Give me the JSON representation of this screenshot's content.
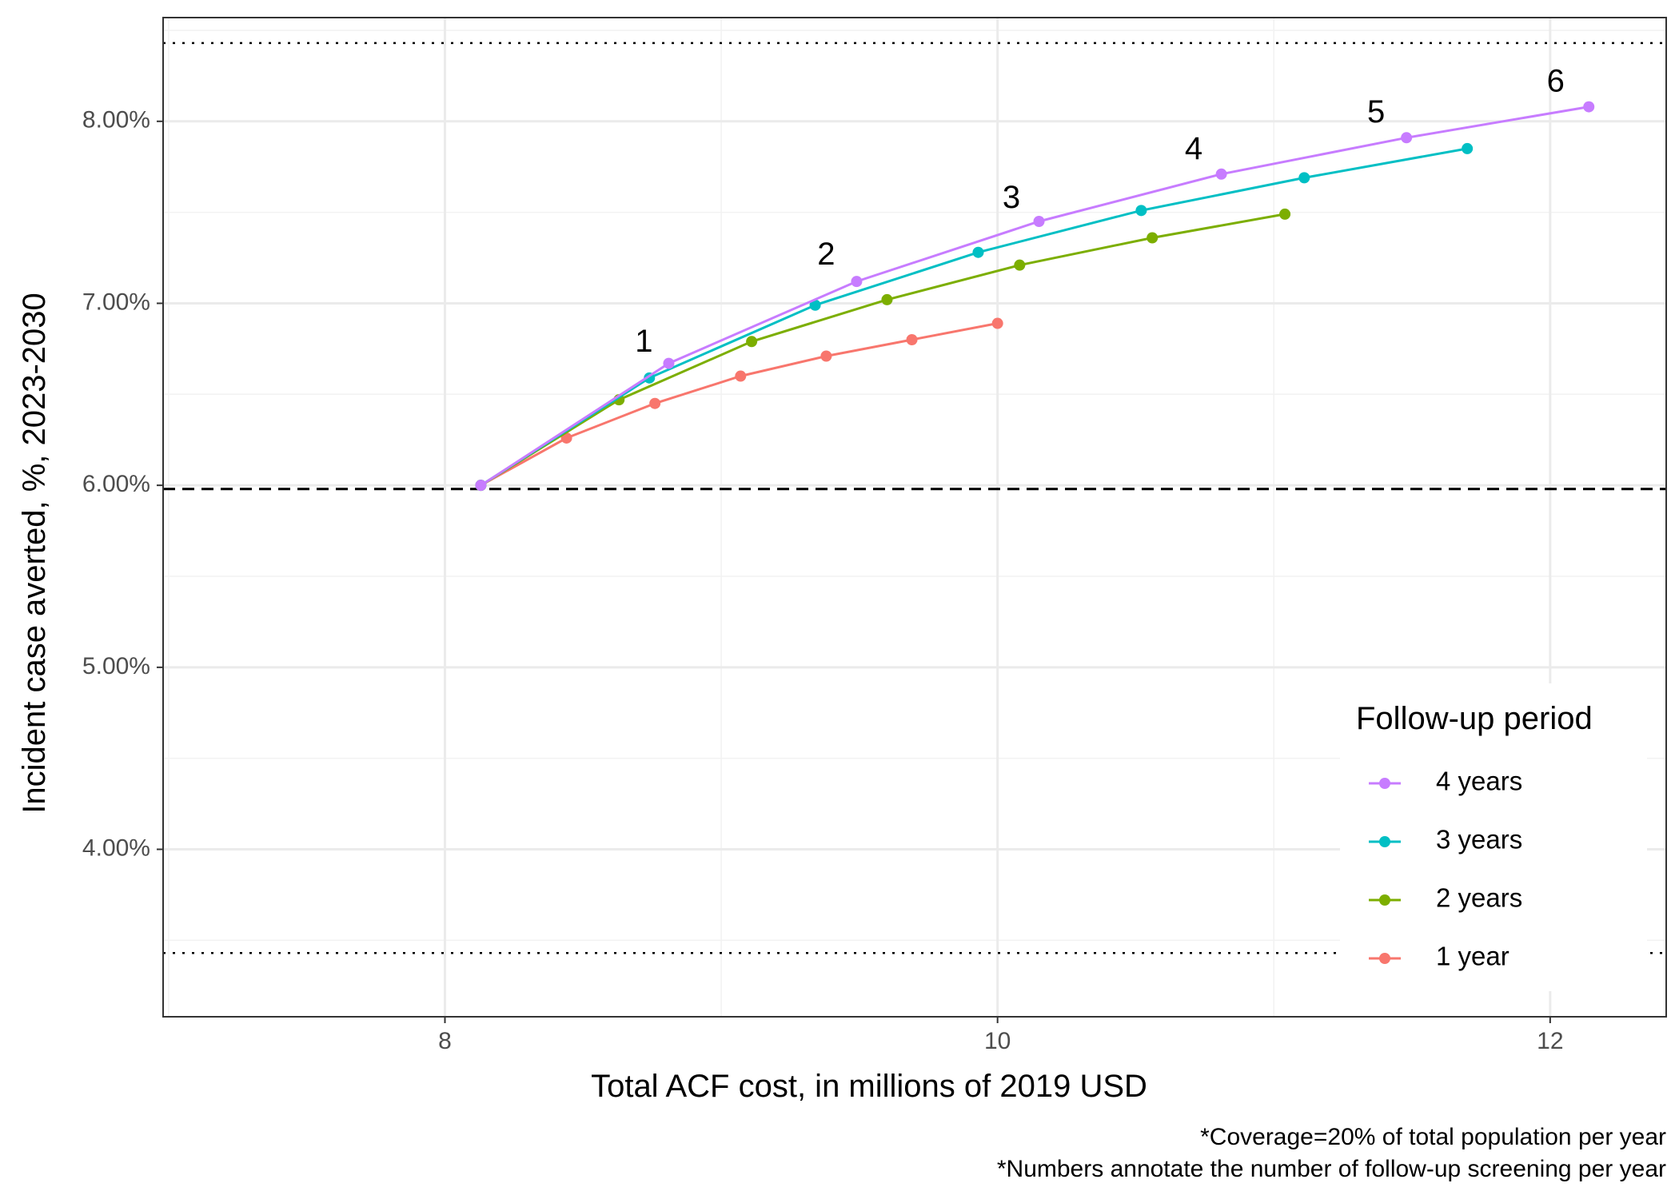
{
  "chart_data": {
    "type": "line",
    "title": "",
    "xlabel": "Total ACF cost, in millions of 2019 USD",
    "ylabel": "Incident case averted, %, 2023-2030",
    "xlim": [
      6.98,
      12.42
    ],
    "ylim": [
      3.08,
      8.57
    ],
    "x_ticks": [
      8,
      10,
      12
    ],
    "x_tick_labels": [
      "8",
      "10",
      "12"
    ],
    "y_ticks": [
      4,
      5,
      6,
      7,
      8
    ],
    "y_tick_labels": [
      "4.00%",
      "5.00%",
      "6.00%",
      "7.00%",
      "8.00%"
    ],
    "grid": true,
    "reference_lines": [
      {
        "style": "dashed",
        "y": 5.98
      },
      {
        "style": "dotted",
        "y": 8.43
      },
      {
        "style": "dotted",
        "y": 3.43
      }
    ],
    "legend": {
      "title": "Follow-up period",
      "position": "inside-bottom-right"
    },
    "series": [
      {
        "name": "4 years",
        "color": "#C77CFF",
        "x": [
          8.13,
          8.81,
          9.49,
          10.15,
          10.81,
          11.48,
          12.14
        ],
        "y": [
          6.0,
          6.67,
          7.12,
          7.45,
          7.71,
          7.91,
          8.08
        ]
      },
      {
        "name": "3 years",
        "color": "#00BFC4",
        "x": [
          8.13,
          8.74,
          9.34,
          9.93,
          10.52,
          11.11,
          11.7
        ],
        "y": [
          6.0,
          6.59,
          6.99,
          7.28,
          7.51,
          7.69,
          7.85
        ]
      },
      {
        "name": "2 years",
        "color": "#7CAE00",
        "x": [
          8.13,
          8.63,
          9.11,
          9.6,
          10.08,
          10.56,
          11.04
        ],
        "y": [
          6.0,
          6.47,
          6.79,
          7.02,
          7.21,
          7.36,
          7.49
        ]
      },
      {
        "name": "1 year",
        "color": "#F8766D",
        "x": [
          8.13,
          8.44,
          8.76,
          9.07,
          9.38,
          9.69,
          10.0
        ],
        "y": [
          6.0,
          6.26,
          6.45,
          6.6,
          6.71,
          6.8,
          6.89
        ]
      }
    ],
    "annotations": [
      {
        "text": "1",
        "x": 8.72,
        "y": 6.78
      },
      {
        "text": "2",
        "x": 9.38,
        "y": 7.26
      },
      {
        "text": "3",
        "x": 10.05,
        "y": 7.57
      },
      {
        "text": "4",
        "x": 10.71,
        "y": 7.84
      },
      {
        "text": "5",
        "x": 11.37,
        "y": 8.04
      },
      {
        "text": "6",
        "x": 12.02,
        "y": 8.21
      }
    ]
  },
  "captions": [
    "*Coverage=20% of total population per year",
    "*Numbers annotate the number of follow-up screening per year"
  ]
}
